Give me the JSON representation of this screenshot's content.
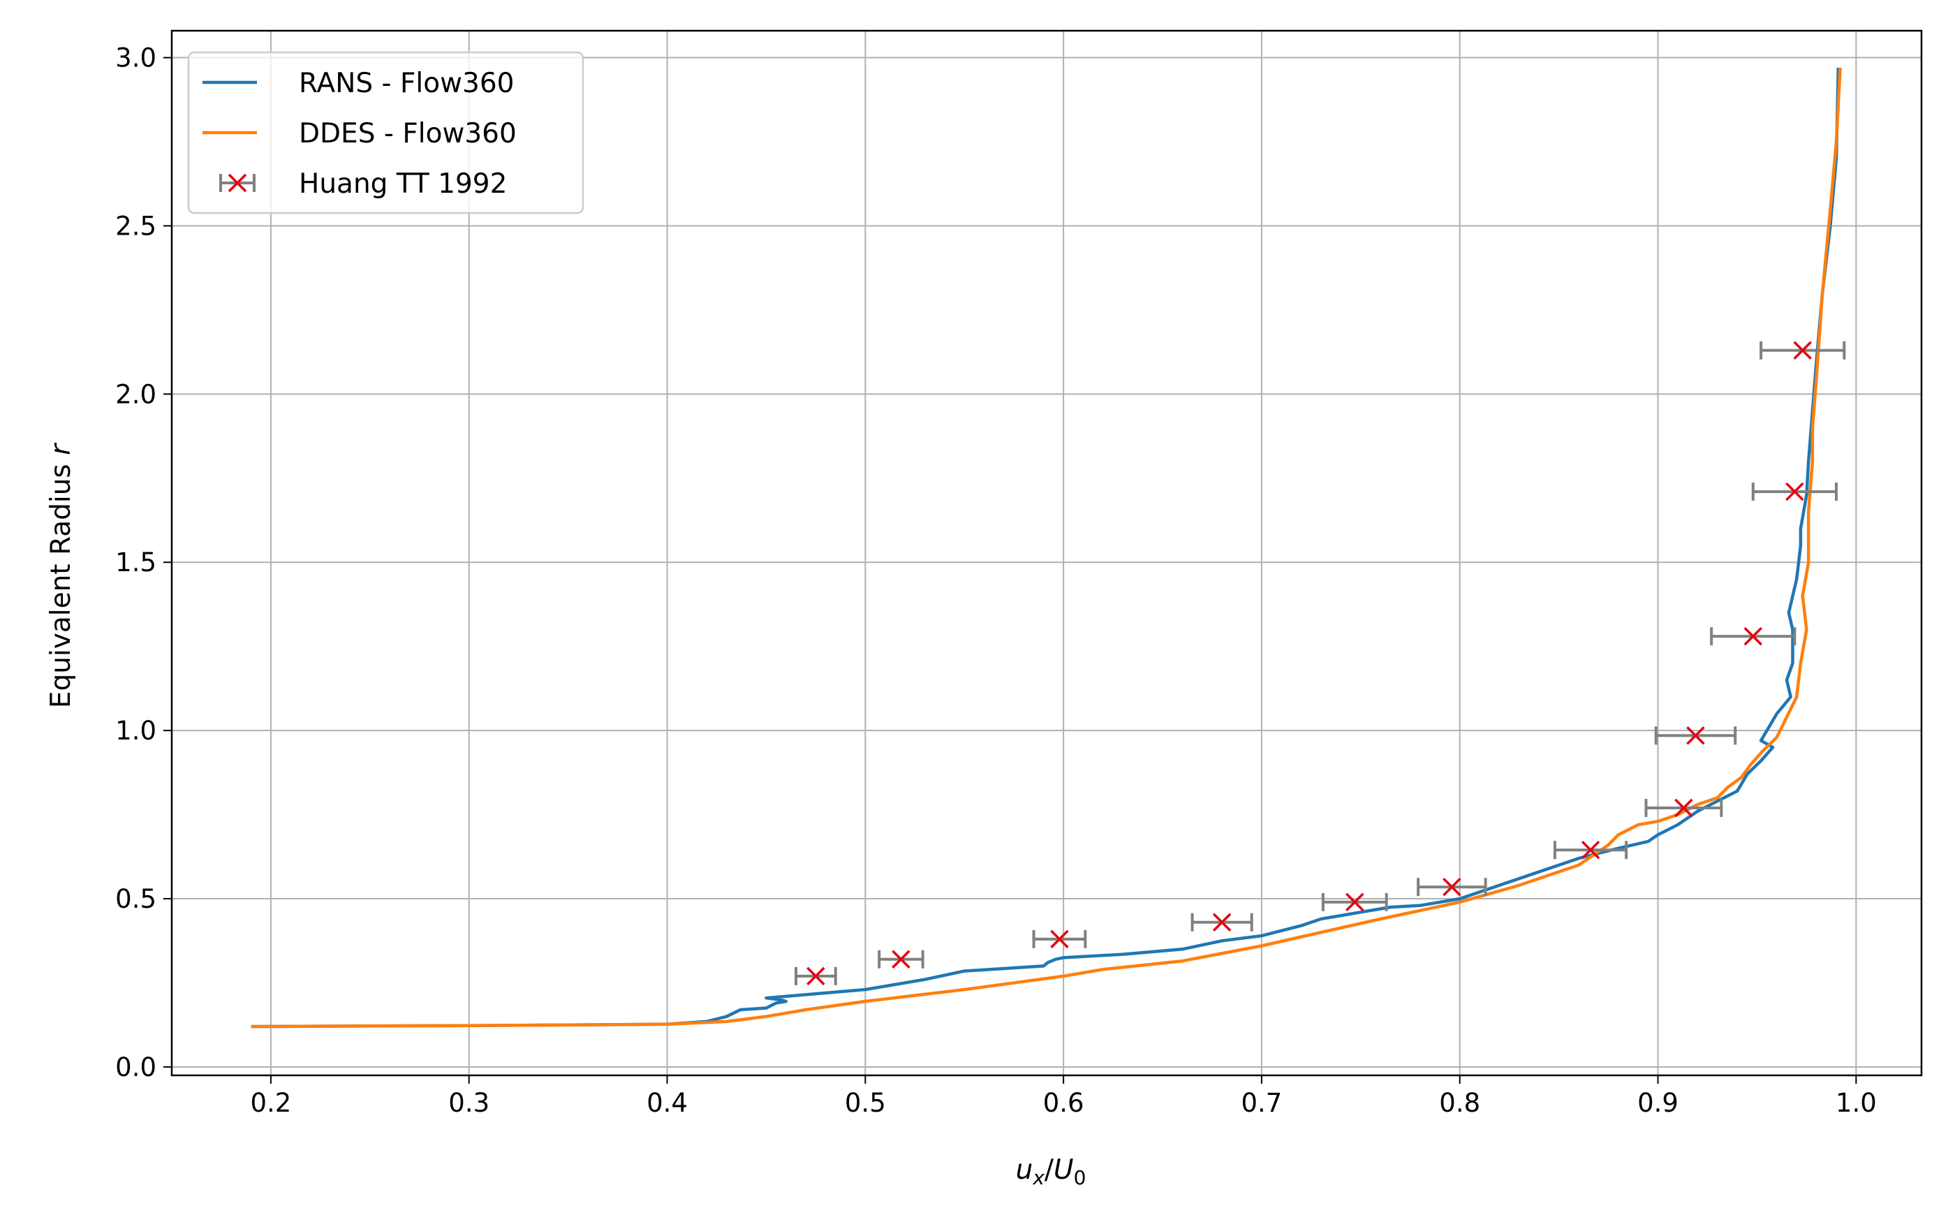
{
  "chart_data": {
    "type": "line",
    "title": "",
    "xlabel_parts": {
      "u": "u",
      "x": "x",
      "slash": "/",
      "U": "U",
      "zero": "0"
    },
    "ylabel_text": "Equivalent Radius ",
    "ylabel_symbol": "r",
    "xlim": [
      0.15,
      1.033
    ],
    "ylim": [
      -0.025,
      3.08
    ],
    "xticks": [
      0.2,
      0.3,
      0.4,
      0.5,
      0.6,
      0.7,
      0.8,
      0.9,
      1.0
    ],
    "xtick_labels": [
      "0.2",
      "0.3",
      "0.4",
      "0.5",
      "0.6",
      "0.7",
      "0.8",
      "0.9",
      "1.0"
    ],
    "yticks": [
      0.0,
      0.5,
      1.0,
      1.5,
      2.0,
      2.5,
      3.0
    ],
    "ytick_labels": [
      "0.0",
      "0.5",
      "1.0",
      "1.5",
      "2.0",
      "2.5",
      "3.0"
    ],
    "grid": true,
    "legend_position": "top-left",
    "series": [
      {
        "name": "RANS - Flow360",
        "color": "#1f77b4",
        "style": "line",
        "points": [
          [
            0.19,
            0.12
          ],
          [
            0.3,
            0.123
          ],
          [
            0.4,
            0.127
          ],
          [
            0.42,
            0.135
          ],
          [
            0.43,
            0.15
          ],
          [
            0.437,
            0.17
          ],
          [
            0.45,
            0.175
          ],
          [
            0.455,
            0.19
          ],
          [
            0.46,
            0.195
          ],
          [
            0.457,
            0.2
          ],
          [
            0.45,
            0.205
          ],
          [
            0.47,
            0.215
          ],
          [
            0.5,
            0.23
          ],
          [
            0.53,
            0.26
          ],
          [
            0.55,
            0.285
          ],
          [
            0.59,
            0.3
          ],
          [
            0.592,
            0.31
          ],
          [
            0.596,
            0.32
          ],
          [
            0.6,
            0.325
          ],
          [
            0.63,
            0.335
          ],
          [
            0.66,
            0.35
          ],
          [
            0.68,
            0.375
          ],
          [
            0.7,
            0.39
          ],
          [
            0.72,
            0.42
          ],
          [
            0.73,
            0.44
          ],
          [
            0.75,
            0.46
          ],
          [
            0.76,
            0.47
          ],
          [
            0.765,
            0.475
          ],
          [
            0.78,
            0.48
          ],
          [
            0.8,
            0.5
          ],
          [
            0.82,
            0.54
          ],
          [
            0.84,
            0.58
          ],
          [
            0.86,
            0.62
          ],
          [
            0.88,
            0.65
          ],
          [
            0.895,
            0.67
          ],
          [
            0.9,
            0.69
          ],
          [
            0.91,
            0.72
          ],
          [
            0.92,
            0.76
          ],
          [
            0.93,
            0.79
          ],
          [
            0.94,
            0.82
          ],
          [
            0.945,
            0.87
          ],
          [
            0.952,
            0.91
          ],
          [
            0.958,
            0.95
          ],
          [
            0.952,
            0.97
          ],
          [
            0.96,
            1.05
          ],
          [
            0.967,
            1.1
          ],
          [
            0.965,
            1.15
          ],
          [
            0.968,
            1.2
          ],
          [
            0.968,
            1.3
          ],
          [
            0.966,
            1.35
          ],
          [
            0.97,
            1.45
          ],
          [
            0.972,
            1.55
          ],
          [
            0.972,
            1.6
          ],
          [
            0.975,
            1.7
          ],
          [
            0.976,
            1.8
          ],
          [
            0.978,
            1.95
          ],
          [
            0.98,
            2.1
          ],
          [
            0.983,
            2.3
          ],
          [
            0.987,
            2.5
          ],
          [
            0.99,
            2.7
          ],
          [
            0.991,
            2.97
          ]
        ]
      },
      {
        "name": "DDES - Flow360",
        "color": "#ff7f0e",
        "style": "line",
        "points": [
          [
            0.19,
            0.12
          ],
          [
            0.3,
            0.123
          ],
          [
            0.4,
            0.127
          ],
          [
            0.43,
            0.135
          ],
          [
            0.45,
            0.15
          ],
          [
            0.47,
            0.17
          ],
          [
            0.5,
            0.195
          ],
          [
            0.55,
            0.23
          ],
          [
            0.6,
            0.27
          ],
          [
            0.62,
            0.29
          ],
          [
            0.66,
            0.315
          ],
          [
            0.7,
            0.36
          ],
          [
            0.73,
            0.4
          ],
          [
            0.76,
            0.44
          ],
          [
            0.8,
            0.49
          ],
          [
            0.83,
            0.54
          ],
          [
            0.86,
            0.6
          ],
          [
            0.875,
            0.66
          ],
          [
            0.88,
            0.69
          ],
          [
            0.89,
            0.72
          ],
          [
            0.9,
            0.73
          ],
          [
            0.91,
            0.75
          ],
          [
            0.92,
            0.78
          ],
          [
            0.93,
            0.8
          ],
          [
            0.935,
            0.83
          ],
          [
            0.942,
            0.86
          ],
          [
            0.947,
            0.9
          ],
          [
            0.953,
            0.94
          ],
          [
            0.96,
            0.98
          ],
          [
            0.965,
            1.04
          ],
          [
            0.97,
            1.1
          ],
          [
            0.972,
            1.2
          ],
          [
            0.975,
            1.3
          ],
          [
            0.973,
            1.4
          ],
          [
            0.976,
            1.5
          ],
          [
            0.976,
            1.65
          ],
          [
            0.978,
            1.8
          ],
          [
            0.978,
            1.9
          ],
          [
            0.98,
            2.05
          ],
          [
            0.983,
            2.3
          ],
          [
            0.987,
            2.55
          ],
          [
            0.99,
            2.75
          ],
          [
            0.992,
            2.97
          ]
        ]
      },
      {
        "name": "Huang TT 1992",
        "color": "#e6000f",
        "errcolor": "#808080",
        "style": "errorbar-x",
        "points": [
          [
            0.475,
            0.27,
            0.01
          ],
          [
            0.518,
            0.32,
            0.011
          ],
          [
            0.598,
            0.38,
            0.013
          ],
          [
            0.68,
            0.43,
            0.015
          ],
          [
            0.747,
            0.49,
            0.016
          ],
          [
            0.796,
            0.535,
            0.017
          ],
          [
            0.866,
            0.645,
            0.018
          ],
          [
            0.913,
            0.77,
            0.019
          ],
          [
            0.919,
            0.985,
            0.02
          ],
          [
            0.948,
            1.28,
            0.021
          ],
          [
            0.969,
            1.71,
            0.021
          ],
          [
            0.973,
            2.13,
            0.021
          ]
        ]
      }
    ]
  }
}
